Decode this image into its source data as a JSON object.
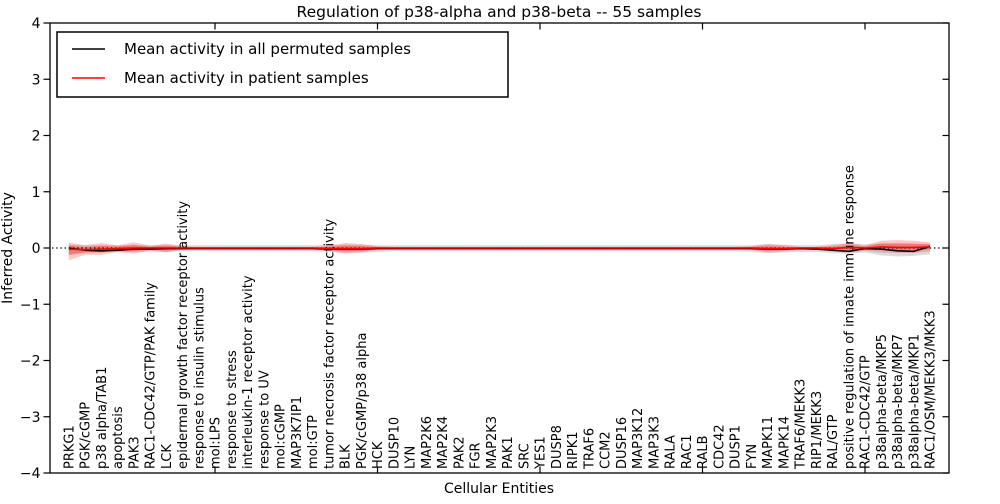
{
  "title": "Regulation of p38-alpha and p38-beta -- 55 samples",
  "legend": {
    "entries": [
      {
        "label": "Mean activity in all permuted samples",
        "color": "#000000"
      },
      {
        "label": "Mean activity in patient samples",
        "color": "#ff0000"
      }
    ]
  },
  "chart_data": {
    "type": "line",
    "title": "Regulation of p38-alpha and p38-beta -- 55 samples",
    "xlabel": "Cellular Entities",
    "ylabel": "Inferred Activity",
    "ylim": [
      -4,
      4
    ],
    "grid": false,
    "legend_position": "upper-left",
    "sample_count": "55",
    "y_ticks": {
      "values": [
        -4,
        -3,
        -2,
        -1,
        0,
        1,
        2,
        3,
        4
      ],
      "labels": [
        "−4",
        "−3",
        "−2",
        "−1",
        "0",
        "1",
        "2",
        "3",
        "4"
      ]
    },
    "x_major_tick_indices": [
      9,
      19,
      29,
      39,
      49
    ],
    "reference_line": {
      "value": 0,
      "style": "dotted",
      "color": "#000000"
    },
    "categories": [
      "PRKG1",
      "PGK/cGMP",
      "p38 alpha/TAB1",
      "apoptosis",
      "PAK3",
      "RAC1-CDC42/GTP/PAK family",
      "LCK",
      "epidermal growth factor receptor activity",
      "response to insulin stimulus",
      "mol:LPS",
      "response to stress",
      "interleukin-1 receptor activity",
      "response to UV",
      "mol:cGMP",
      "MAP3K7IP1",
      "mol:GTP",
      "tumor necrosis factor receptor activity",
      "BLK",
      "PGK/cGMP/p38 alpha",
      "HCK",
      "DUSP10",
      "LYN",
      "MAP2K6",
      "MAP2K4",
      "PAK2",
      "FGR",
      "MAP2K3",
      "PAK1",
      "SRC",
      "YES1",
      "DUSP8",
      "RIPK1",
      "TRAF6",
      "CCM2",
      "DUSP16",
      "MAP3K12",
      "MAP3K3",
      "RALA",
      "RAC1",
      "RALB",
      "CDC42",
      "DUSP1",
      "FYN",
      "MAPK11",
      "MAPK14",
      "TRAF6/MEKK3",
      "RIP1/MEKK3",
      "RAL/GTP",
      "positive regulation of innate immune response",
      "RAC1-CDC42/GTP",
      "p38alpha-beta/MKP5",
      "p38alpha-beta/MKP7",
      "p38alpha-beta/MKP1",
      "RAC1/OSM/MEKK3/MKK3"
    ],
    "series": [
      {
        "name": "Mean activity in all permuted samples",
        "color": "#000000",
        "values": [
          0.0,
          -0.04,
          -0.05,
          -0.04,
          -0.02,
          -0.02,
          -0.01,
          -0.01,
          -0.01,
          -0.01,
          -0.01,
          -0.01,
          -0.01,
          -0.01,
          -0.01,
          -0.01,
          -0.02,
          -0.02,
          -0.02,
          -0.01,
          -0.01,
          -0.01,
          -0.01,
          -0.01,
          -0.01,
          -0.01,
          -0.01,
          -0.01,
          -0.01,
          -0.01,
          -0.01,
          -0.01,
          -0.01,
          -0.01,
          -0.01,
          -0.01,
          -0.01,
          -0.01,
          -0.01,
          -0.01,
          -0.01,
          -0.01,
          -0.01,
          -0.02,
          -0.02,
          -0.01,
          -0.02,
          -0.04,
          -0.06,
          -0.01,
          -0.02,
          -0.05,
          -0.06,
          0.03
        ]
      },
      {
        "name": "Mean activity in patient samples",
        "color": "#ff0000",
        "values": [
          -0.02,
          -0.03,
          -0.02,
          -0.01,
          0.0,
          0.0,
          0.0,
          0.0,
          0.0,
          0.0,
          0.0,
          0.0,
          0.0,
          0.0,
          0.0,
          0.0,
          -0.01,
          -0.01,
          -0.01,
          0.0,
          0.0,
          0.0,
          0.0,
          0.0,
          0.0,
          0.0,
          0.0,
          0.0,
          0.0,
          0.0,
          0.0,
          0.0,
          0.0,
          0.0,
          0.0,
          0.0,
          0.0,
          0.0,
          0.0,
          0.0,
          0.0,
          0.0,
          0.0,
          -0.01,
          -0.01,
          0.0,
          0.0,
          -0.01,
          0.01,
          0.0,
          0.02,
          0.01,
          0.01,
          0.02
        ]
      }
    ],
    "bands": {
      "permuted": {
        "name": "permuted samples activity range",
        "color": "#999999",
        "opacity": 0.35,
        "upper": [
          0.06,
          0.05,
          0.05,
          0.05,
          0.05,
          0.05,
          0.05,
          0.05,
          0.05,
          0.05,
          0.05,
          0.05,
          0.05,
          0.05,
          0.05,
          0.05,
          0.05,
          0.06,
          0.06,
          0.05,
          0.05,
          0.05,
          0.05,
          0.05,
          0.05,
          0.05,
          0.05,
          0.05,
          0.05,
          0.05,
          0.05,
          0.05,
          0.05,
          0.05,
          0.05,
          0.05,
          0.05,
          0.05,
          0.05,
          0.05,
          0.05,
          0.05,
          0.05,
          0.07,
          0.06,
          0.05,
          0.05,
          0.07,
          0.08,
          0.06,
          0.08,
          0.08,
          0.08,
          0.07
        ],
        "lower": [
          -0.1,
          -0.08,
          -0.08,
          -0.07,
          -0.07,
          -0.07,
          -0.07,
          -0.06,
          -0.06,
          -0.06,
          -0.06,
          -0.06,
          -0.06,
          -0.06,
          -0.06,
          -0.06,
          -0.07,
          -0.08,
          -0.08,
          -0.07,
          -0.06,
          -0.06,
          -0.06,
          -0.06,
          -0.06,
          -0.06,
          -0.06,
          -0.06,
          -0.06,
          -0.06,
          -0.06,
          -0.06,
          -0.06,
          -0.06,
          -0.06,
          -0.06,
          -0.06,
          -0.06,
          -0.06,
          -0.06,
          -0.06,
          -0.06,
          -0.07,
          -0.09,
          -0.08,
          -0.07,
          -0.07,
          -0.09,
          -0.1,
          -0.08,
          -0.13,
          -0.15,
          -0.14,
          -0.11
        ]
      },
      "patient": {
        "name": "patient samples activity range",
        "color": "#ff0000",
        "outer_opacity": 0.22,
        "inner_opacity": 0.28,
        "upper": [
          0.1,
          0.05,
          0.09,
          0.05,
          0.1,
          0.04,
          0.08,
          0.03,
          0.02,
          0.02,
          0.02,
          0.02,
          0.02,
          0.02,
          0.02,
          0.02,
          0.04,
          0.09,
          0.07,
          0.03,
          0.02,
          0.02,
          0.02,
          0.02,
          0.02,
          0.02,
          0.02,
          0.02,
          0.02,
          0.02,
          0.02,
          0.02,
          0.02,
          0.02,
          0.02,
          0.02,
          0.02,
          0.02,
          0.02,
          0.02,
          0.02,
          0.02,
          0.03,
          0.07,
          0.05,
          0.02,
          0.02,
          0.05,
          0.09,
          0.05,
          0.13,
          0.14,
          0.13,
          0.1
        ],
        "lower": [
          -0.22,
          -0.12,
          -0.12,
          -0.07,
          -0.1,
          -0.04,
          -0.08,
          -0.03,
          -0.02,
          -0.02,
          -0.02,
          -0.02,
          -0.02,
          -0.02,
          -0.02,
          -0.02,
          -0.05,
          -0.1,
          -0.08,
          -0.03,
          -0.02,
          -0.02,
          -0.02,
          -0.02,
          -0.02,
          -0.02,
          -0.02,
          -0.02,
          -0.02,
          -0.02,
          -0.02,
          -0.02,
          -0.02,
          -0.02,
          -0.02,
          -0.02,
          -0.02,
          -0.02,
          -0.02,
          -0.02,
          -0.02,
          -0.02,
          -0.03,
          -0.08,
          -0.06,
          -0.02,
          -0.02,
          -0.06,
          -0.08,
          -0.05,
          -0.08,
          -0.09,
          -0.09,
          -0.06
        ]
      }
    }
  }
}
